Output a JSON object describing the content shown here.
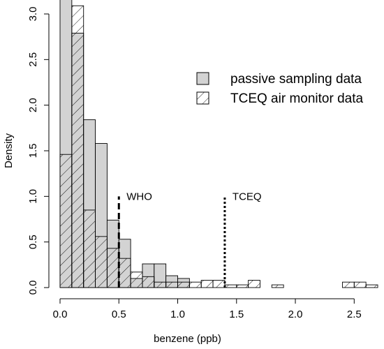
{
  "chart_data": {
    "type": "histogram",
    "xlabel": "benzene (ppb)",
    "ylabel": "Density",
    "xlim": [
      0,
      2.7
    ],
    "ylim": [
      0,
      3.1
    ],
    "bin_width": 0.1,
    "x_ticks": [
      "0.0",
      "0.5",
      "1.0",
      "1.5",
      "2.0",
      "2.5"
    ],
    "y_ticks": [
      "0.0",
      "0.5",
      "1.0",
      "1.5",
      "2.0",
      "2.5",
      "3.0"
    ],
    "series": [
      {
        "name": "passive sampling data",
        "fill": "solid-gray",
        "color": "#d3d3d3",
        "bins": [
          {
            "x0": 0.0,
            "x1": 0.1,
            "density": 3.2
          },
          {
            "x0": 0.1,
            "x1": 0.2,
            "density": 2.79
          },
          {
            "x0": 0.2,
            "x1": 0.3,
            "density": 1.84
          },
          {
            "x0": 0.3,
            "x1": 0.4,
            "density": 1.58
          },
          {
            "x0": 0.4,
            "x1": 0.5,
            "density": 0.74
          },
          {
            "x0": 0.5,
            "x1": 0.6,
            "density": 0.53
          },
          {
            "x0": 0.6,
            "x1": 0.7,
            "density": 0.1
          },
          {
            "x0": 0.7,
            "x1": 0.8,
            "density": 0.26
          },
          {
            "x0": 0.8,
            "x1": 0.9,
            "density": 0.26
          },
          {
            "x0": 0.9,
            "x1": 1.0,
            "density": 0.13
          },
          {
            "x0": 1.0,
            "x1": 1.1,
            "density": 0.1
          }
        ]
      },
      {
        "name": "TCEQ air monitor data",
        "fill": "hatched",
        "color": "#000000",
        "bins": [
          {
            "x0": 0.0,
            "x1": 0.1,
            "density": 1.46
          },
          {
            "x0": 0.1,
            "x1": 0.2,
            "density": 3.09
          },
          {
            "x0": 0.2,
            "x1": 0.3,
            "density": 0.85
          },
          {
            "x0": 0.3,
            "x1": 0.4,
            "density": 0.56
          },
          {
            "x0": 0.4,
            "x1": 0.5,
            "density": 0.43
          },
          {
            "x0": 0.5,
            "x1": 0.6,
            "density": 0.32
          },
          {
            "x0": 0.6,
            "x1": 0.7,
            "density": 0.17
          },
          {
            "x0": 0.7,
            "x1": 0.8,
            "density": 0.12
          },
          {
            "x0": 0.8,
            "x1": 0.9,
            "density": 0.06
          },
          {
            "x0": 0.9,
            "x1": 1.0,
            "density": 0.06
          },
          {
            "x0": 1.0,
            "x1": 1.1,
            "density": 0.06
          },
          {
            "x0": 1.1,
            "x1": 1.2,
            "density": 0.06
          },
          {
            "x0": 1.2,
            "x1": 1.3,
            "density": 0.08
          },
          {
            "x0": 1.3,
            "x1": 1.4,
            "density": 0.08
          },
          {
            "x0": 1.4,
            "x1": 1.5,
            "density": 0.03
          },
          {
            "x0": 1.5,
            "x1": 1.6,
            "density": 0.03
          },
          {
            "x0": 1.6,
            "x1": 1.7,
            "density": 0.08
          },
          {
            "x0": 1.8,
            "x1": 1.9,
            "density": 0.03
          },
          {
            "x0": 2.4,
            "x1": 2.5,
            "density": 0.06
          },
          {
            "x0": 2.5,
            "x1": 2.6,
            "density": 0.06
          },
          {
            "x0": 2.6,
            "x1": 2.7,
            "density": 0.03
          }
        ]
      }
    ],
    "reference_lines": [
      {
        "label": "WHO",
        "x": 0.5,
        "y_top": 1.0,
        "style": "dashed"
      },
      {
        "label": "TCEQ",
        "x": 1.4,
        "y_top": 1.0,
        "style": "dotted"
      }
    ],
    "legend": {
      "position": "top-right",
      "entries": [
        "passive sampling data",
        "TCEQ air monitor data"
      ]
    },
    "grid": false
  }
}
